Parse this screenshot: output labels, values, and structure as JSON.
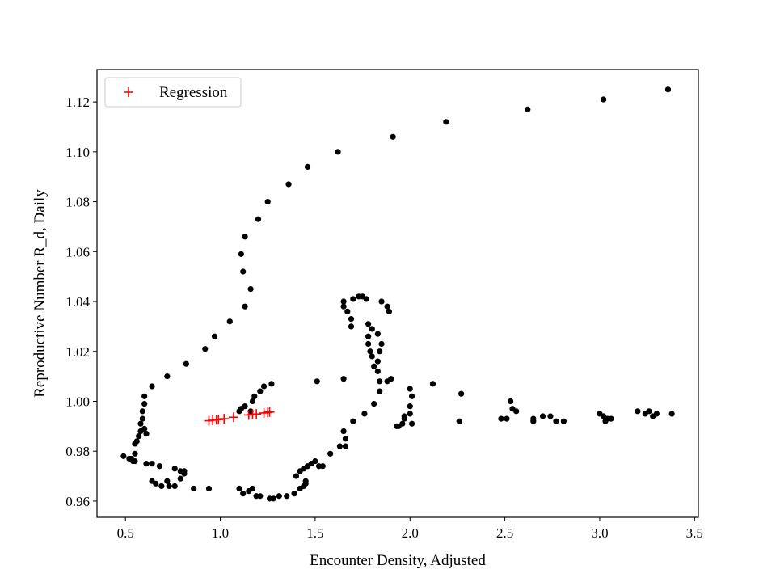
{
  "chart_data": {
    "type": "scatter",
    "title": "",
    "xlabel": "Encounter Density, Adjusted",
    "ylabel": "Reproductive Number R_d, Daily",
    "xlim": [
      0.35,
      3.52
    ],
    "ylim": [
      0.9535,
      1.133
    ],
    "x_ticks": [
      0.5,
      1.0,
      1.5,
      2.0,
      2.5,
      3.0,
      3.5
    ],
    "x_tick_labels": [
      "0.5",
      "1.0",
      "1.5",
      "2.0",
      "2.5",
      "3.0",
      "3.5"
    ],
    "y_ticks": [
      0.96,
      0.98,
      1.0,
      1.02,
      1.04,
      1.06,
      1.08,
      1.1,
      1.12
    ],
    "y_tick_labels": [
      "0.96",
      "0.98",
      "1.00",
      "1.02",
      "1.04",
      "1.06",
      "1.08",
      "1.10",
      "1.12"
    ],
    "grid": false,
    "legend": {
      "position": "upper-left",
      "entries": [
        {
          "label": "Regression",
          "marker": "+",
          "color": "#ff0000"
        }
      ]
    },
    "series": [
      {
        "marker": "dot",
        "color": "#000000",
        "points": [
          [
            0.49,
            0.978
          ],
          [
            0.52,
            0.977
          ],
          [
            0.53,
            0.977
          ],
          [
            0.54,
            0.976
          ],
          [
            0.55,
            0.976
          ],
          [
            0.55,
            0.979
          ],
          [
            0.55,
            0.983
          ],
          [
            0.56,
            0.984
          ],
          [
            0.57,
            0.986
          ],
          [
            0.58,
            0.988
          ],
          [
            0.58,
            0.991
          ],
          [
            0.59,
            0.993
          ],
          [
            0.59,
            0.996
          ],
          [
            0.6,
            0.999
          ],
          [
            0.6,
            1.002
          ],
          [
            0.6,
            0.989
          ],
          [
            0.61,
            0.987
          ],
          [
            0.64,
            1.006
          ],
          [
            0.72,
            1.01
          ],
          [
            0.82,
            1.015
          ],
          [
            0.92,
            1.021
          ],
          [
            0.97,
            1.026
          ],
          [
            1.05,
            1.032
          ],
          [
            1.13,
            1.038
          ],
          [
            1.16,
            1.045
          ],
          [
            1.12,
            1.052
          ],
          [
            1.11,
            1.059
          ],
          [
            1.13,
            1.066
          ],
          [
            1.2,
            1.073
          ],
          [
            1.25,
            1.08
          ],
          [
            1.36,
            1.087
          ],
          [
            1.46,
            1.094
          ],
          [
            1.62,
            1.1
          ],
          [
            1.91,
            1.106
          ],
          [
            2.19,
            1.112
          ],
          [
            2.62,
            1.117
          ],
          [
            3.02,
            1.121
          ],
          [
            3.36,
            1.125
          ],
          [
            0.61,
            0.975
          ],
          [
            0.64,
            0.975
          ],
          [
            0.68,
            0.974
          ],
          [
            0.64,
            0.968
          ],
          [
            0.66,
            0.967
          ],
          [
            0.69,
            0.966
          ],
          [
            0.72,
            0.968
          ],
          [
            0.73,
            0.966
          ],
          [
            0.76,
            0.966
          ],
          [
            0.76,
            0.973
          ],
          [
            0.79,
            0.972
          ],
          [
            0.81,
            0.971
          ],
          [
            0.81,
            0.972
          ],
          [
            0.79,
            0.969
          ],
          [
            0.86,
            0.965
          ],
          [
            0.94,
            0.965
          ],
          [
            1.1,
            0.965
          ],
          [
            1.12,
            0.963
          ],
          [
            1.15,
            0.964
          ],
          [
            1.17,
            0.965
          ],
          [
            1.19,
            0.962
          ],
          [
            1.21,
            0.962
          ],
          [
            1.26,
            0.961
          ],
          [
            1.28,
            0.961
          ],
          [
            1.31,
            0.962
          ],
          [
            1.35,
            0.962
          ],
          [
            1.39,
            0.963
          ],
          [
            1.42,
            0.965
          ],
          [
            1.44,
            0.966
          ],
          [
            1.45,
            0.967
          ],
          [
            1.45,
            0.968
          ],
          [
            1.4,
            0.97
          ],
          [
            1.42,
            0.972
          ],
          [
            1.44,
            0.973
          ],
          [
            1.46,
            0.974
          ],
          [
            1.48,
            0.975
          ],
          [
            1.5,
            0.976
          ],
          [
            1.52,
            0.974
          ],
          [
            1.54,
            0.974
          ],
          [
            1.58,
            0.979
          ],
          [
            1.63,
            0.982
          ],
          [
            1.66,
            0.982
          ],
          [
            1.66,
            0.985
          ],
          [
            1.65,
            0.988
          ],
          [
            1.7,
            0.992
          ],
          [
            1.76,
            0.995
          ],
          [
            1.81,
            0.999
          ],
          [
            1.84,
            1.004
          ],
          [
            1.84,
            1.008
          ],
          [
            1.83,
            1.012
          ],
          [
            1.83,
            1.016
          ],
          [
            1.84,
            1.02
          ],
          [
            1.85,
            1.023
          ],
          [
            1.83,
            1.027
          ],
          [
            1.8,
            1.029
          ],
          [
            1.78,
            1.031
          ],
          [
            1.78,
            1.026
          ],
          [
            1.78,
            1.023
          ],
          [
            1.79,
            1.02
          ],
          [
            1.8,
            1.018
          ],
          [
            1.81,
            1.014
          ],
          [
            1.88,
            1.008
          ],
          [
            1.9,
            1.009
          ],
          [
            1.89,
            1.036
          ],
          [
            1.88,
            1.038
          ],
          [
            1.85,
            1.04
          ],
          [
            1.77,
            1.041
          ],
          [
            1.75,
            1.042
          ],
          [
            1.73,
            1.042
          ],
          [
            1.7,
            1.041
          ],
          [
            1.65,
            1.04
          ],
          [
            1.65,
            1.038
          ],
          [
            1.67,
            1.036
          ],
          [
            1.69,
            1.033
          ],
          [
            1.69,
            1.03
          ],
          [
            1.65,
            1.009
          ],
          [
            1.51,
            1.008
          ],
          [
            1.27,
            1.007
          ],
          [
            1.23,
            1.006
          ],
          [
            1.21,
            1.004
          ],
          [
            1.18,
            1.002
          ],
          [
            1.17,
            1.0
          ],
          [
            1.13,
            0.998
          ],
          [
            1.11,
            0.997
          ],
          [
            1.1,
            0.996
          ],
          [
            1.16,
            0.996
          ],
          [
            1.93,
            0.99
          ],
          [
            1.94,
            0.99
          ],
          [
            1.96,
            0.991
          ],
          [
            1.97,
            0.993
          ],
          [
            1.97,
            0.994
          ],
          [
            2.0,
            1.005
          ],
          [
            2.01,
            1.002
          ],
          [
            2.0,
            0.998
          ],
          [
            2.0,
            0.995
          ],
          [
            2.01,
            0.991
          ],
          [
            2.12,
            1.007
          ],
          [
            2.26,
            0.992
          ],
          [
            2.27,
            1.003
          ],
          [
            2.48,
            0.993
          ],
          [
            2.51,
            0.993
          ],
          [
            2.53,
            1.0
          ],
          [
            2.54,
            0.997
          ],
          [
            2.56,
            0.996
          ],
          [
            2.65,
            0.993
          ],
          [
            2.65,
            0.992
          ],
          [
            2.7,
            0.994
          ],
          [
            2.74,
            0.994
          ],
          [
            2.77,
            0.992
          ],
          [
            2.81,
            0.992
          ],
          [
            3.0,
            0.995
          ],
          [
            3.02,
            0.994
          ],
          [
            3.04,
            0.993
          ],
          [
            3.03,
            0.992
          ],
          [
            3.06,
            0.993
          ],
          [
            3.2,
            0.996
          ],
          [
            3.24,
            0.995
          ],
          [
            3.26,
            0.996
          ],
          [
            3.28,
            0.994
          ],
          [
            3.3,
            0.995
          ],
          [
            3.38,
            0.995
          ]
        ]
      },
      {
        "name": "Regression",
        "marker": "+",
        "color": "#ff0000",
        "points": [
          [
            0.94,
            0.9922
          ],
          [
            0.96,
            0.9924
          ],
          [
            0.98,
            0.9926
          ],
          [
            0.99,
            0.9927
          ],
          [
            1.02,
            0.993
          ],
          [
            1.07,
            0.9936
          ],
          [
            1.15,
            0.9945
          ],
          [
            1.17,
            0.9947
          ],
          [
            1.19,
            0.9949
          ],
          [
            1.23,
            0.9953
          ],
          [
            1.25,
            0.9955
          ],
          [
            1.26,
            0.9957
          ]
        ]
      }
    ]
  }
}
